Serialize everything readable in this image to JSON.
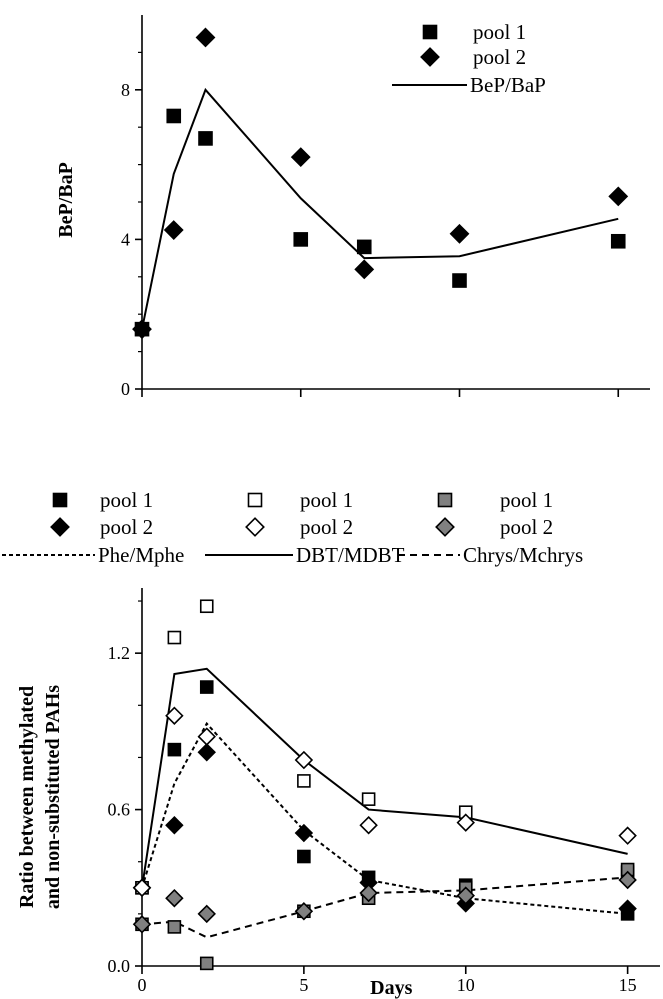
{
  "chart_data": [
    {
      "type": "scatter",
      "ylabel": "BeP/BaP",
      "xlabel": "",
      "xlim": [
        0,
        16
      ],
      "ylim": [
        0,
        10
      ],
      "y_ticks": [
        0,
        4,
        8
      ],
      "x_tick_positions": [
        0,
        5,
        10,
        15
      ],
      "grid": false,
      "legend_position": "top-right",
      "legend": [
        "pool 1",
        "pool 2",
        "BeP/BaP"
      ],
      "series": [
        {
          "name": "pool 1",
          "marker": "square",
          "fill": "#000000",
          "x": [
            0,
            1,
            2,
            5,
            7,
            10,
            15
          ],
          "y": [
            1.6,
            7.3,
            6.7,
            4.0,
            3.8,
            2.9,
            3.95
          ]
        },
        {
          "name": "pool 2",
          "marker": "diamond",
          "fill": "#000000",
          "x": [
            0,
            1,
            2,
            5,
            7,
            10,
            15
          ],
          "y": [
            1.6,
            4.25,
            9.4,
            6.2,
            3.2,
            4.15,
            5.15
          ]
        },
        {
          "name": "BeP/BaP",
          "marker": "line",
          "dash": "solid",
          "x": [
            0,
            1,
            2,
            5,
            7,
            10,
            15
          ],
          "y": [
            1.6,
            5.75,
            8.0,
            5.1,
            3.5,
            3.55,
            4.55
          ]
        }
      ]
    },
    {
      "type": "scatter",
      "ylabel": "Ratio between methylated and non-substituted PAHs",
      "ylabel_lines": [
        "Ratio between methylated",
        "and non-substituted PAHs"
      ],
      "xlabel": "Days",
      "xlim": [
        0,
        16
      ],
      "ylim": [
        0,
        1.45
      ],
      "y_ticks": [
        "0.0",
        "0.6",
        "1.2"
      ],
      "x_ticks": [
        0,
        5,
        10,
        15
      ],
      "grid": false,
      "legend_position": "top",
      "legend_rows": [
        [
          {
            "label": "pool 1",
            "marker": "square",
            "fill": "#000000"
          },
          {
            "label": "pool 1",
            "marker": "square",
            "fill": "#ffffff"
          },
          {
            "label": "pool 1",
            "marker": "square",
            "fill": "#808080"
          }
        ],
        [
          {
            "label": "pool 2",
            "marker": "diamond",
            "fill": "#000000"
          },
          {
            "label": "pool 2",
            "marker": "diamond",
            "fill": "#ffffff"
          },
          {
            "label": "pool 2",
            "marker": "diamond",
            "fill": "#808080"
          }
        ],
        [
          {
            "label": "Phe/Mphe",
            "marker": "line",
            "dash": "dotted"
          },
          {
            "label": "DBT/MDBT",
            "marker": "line",
            "dash": "solid"
          },
          {
            "label": "Chrys/Mchrys",
            "marker": "line",
            "dash": "dashed"
          }
        ]
      ],
      "series": [
        {
          "name": "pool 1",
          "group": "Phe/Mphe",
          "marker": "square",
          "fill": "#000000",
          "x": [
            0,
            1,
            2,
            5,
            7,
            10,
            15
          ],
          "y": [
            0.3,
            0.83,
            1.07,
            0.42,
            0.34,
            0.31,
            0.2
          ]
        },
        {
          "name": "pool 2",
          "group": "Phe/Mphe",
          "marker": "diamond",
          "fill": "#000000",
          "x": [
            0,
            1,
            2,
            5,
            7,
            10,
            15
          ],
          "y": [
            0.3,
            0.54,
            0.82,
            0.51,
            0.32,
            0.24,
            0.22
          ]
        },
        {
          "name": "pool 1",
          "group": "DBT/MDBT",
          "marker": "square",
          "fill": "#ffffff",
          "x": [
            0,
            1,
            2,
            5,
            7,
            10,
            15
          ],
          "y": [
            0.3,
            1.26,
            1.38,
            0.71,
            0.64,
            0.59,
            0.36
          ]
        },
        {
          "name": "pool 2",
          "group": "DBT/MDBT",
          "marker": "diamond",
          "fill": "#ffffff",
          "x": [
            0,
            1,
            2,
            5,
            7,
            10,
            15
          ],
          "y": [
            0.3,
            0.96,
            0.88,
            0.79,
            0.54,
            0.55,
            0.5
          ]
        },
        {
          "name": "pool 1",
          "group": "Chrys/Mchrys",
          "marker": "square",
          "fill": "#808080",
          "x": [
            0,
            1,
            2,
            5,
            7,
            10,
            15
          ],
          "y": [
            0.16,
            0.15,
            0.01,
            0.21,
            0.26,
            0.3,
            0.37
          ]
        },
        {
          "name": "pool 2",
          "group": "Chrys/Mchrys",
          "marker": "diamond",
          "fill": "#808080",
          "x": [
            0,
            1,
            2,
            5,
            7,
            10,
            15
          ],
          "y": [
            0.16,
            0.26,
            0.2,
            0.21,
            0.28,
            0.27,
            0.33
          ]
        },
        {
          "name": "Phe/Mphe",
          "marker": "line",
          "dash": "dotted",
          "x": [
            0,
            1,
            2,
            5,
            7,
            10,
            15
          ],
          "y": [
            0.3,
            0.7,
            0.93,
            0.52,
            0.33,
            0.26,
            0.2
          ]
        },
        {
          "name": "DBT/MDBT",
          "marker": "line",
          "dash": "solid",
          "x": [
            0,
            1,
            2,
            5,
            7,
            10,
            15
          ],
          "y": [
            0.3,
            1.12,
            1.14,
            0.79,
            0.6,
            0.57,
            0.43
          ]
        },
        {
          "name": "Chrys/Mchrys",
          "marker": "line",
          "dash": "dashed",
          "x": [
            0,
            1,
            2,
            5,
            7,
            10,
            15
          ],
          "y": [
            0.16,
            0.17,
            0.11,
            0.21,
            0.28,
            0.29,
            0.34
          ]
        }
      ]
    }
  ]
}
